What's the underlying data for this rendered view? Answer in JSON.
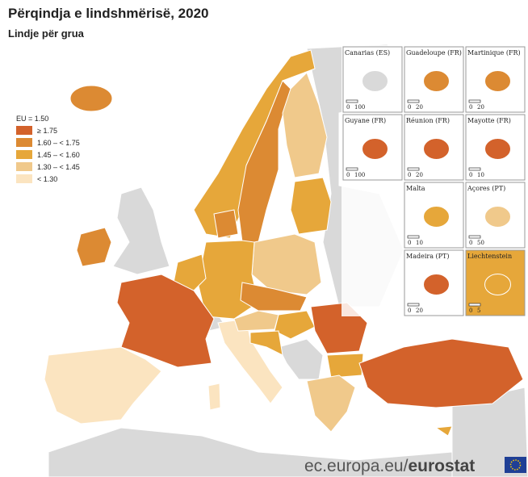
{
  "header": {
    "title": "Përqindja e lindshmërisë, 2020",
    "subtitle": "Lindje për grua"
  },
  "legend": {
    "title": "EU = 1.50",
    "items": [
      {
        "label": "≥ 1.75",
        "color": "#d3622b"
      },
      {
        "label": "1.60 – < 1.75",
        "color": "#dc8a33"
      },
      {
        "label": "1.45 – < 1.60",
        "color": "#e6a73a"
      },
      {
        "label": "1.30 – < 1.45",
        "color": "#f0c98b"
      },
      {
        "label": "< 1.30",
        "color": "#fbe4c0"
      }
    ]
  },
  "insets": [
    {
      "label": "Canarias (ES)",
      "scale": [
        "0",
        "100"
      ]
    },
    {
      "label": "Guadeloupe (FR)",
      "scale": [
        "0",
        "20"
      ]
    },
    {
      "label": "Martinique (FR)",
      "scale": [
        "0",
        "20"
      ]
    },
    {
      "label": "Guyane (FR)",
      "scale": [
        "0",
        "100"
      ]
    },
    {
      "label": "Réunion (FR)",
      "scale": [
        "0",
        "20"
      ]
    },
    {
      "label": "Mayotte (FR)",
      "scale": [
        "0",
        "10"
      ]
    },
    {
      "label": "Malta",
      "scale": [
        "0",
        "10"
      ]
    },
    {
      "label": "Açores (PT)",
      "scale": [
        "0",
        "50"
      ]
    },
    {
      "label": "Madeira (PT)",
      "scale": [
        "0",
        "20"
      ]
    },
    {
      "label": "Liechtenstein",
      "scale": [
        "0",
        "5"
      ]
    }
  ],
  "footer": {
    "domain": "ec.europa.eu/",
    "brand": "eurostat"
  }
}
